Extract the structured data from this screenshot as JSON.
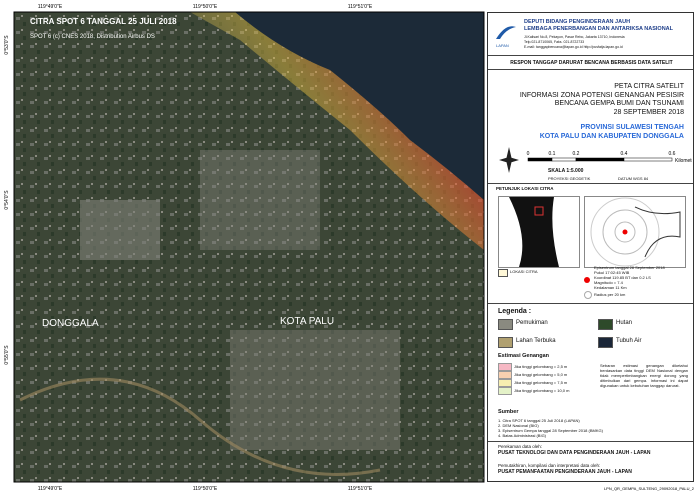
{
  "map": {
    "caption": "CITRA SPOT 6 TANGGAL 25 JULI 2018",
    "copyright": "SPOT 6 (c) CNES 2018, Distribution Airbus DS",
    "labels": [
      "DONGGALA",
      "KOTA PALU"
    ],
    "lon_labels": [
      "119°49'0\"E",
      "119°50'0\"E",
      "119°51'0\"E"
    ],
    "lat_labels": [
      "0°53'0\"S",
      "0°54'0\"S",
      "0°55'0\"S"
    ]
  },
  "header": {
    "agency_line1": "DEPUTI BIDANG PENGINDERAAN JAUH",
    "agency_line2": "LEMBAGA PENERBANGAN DAN ANTARIKSA NASIONAL",
    "logo_text": "LAPAN",
    "address": "Jl.Kalisari No.8, Pekayon, Pasar Rebo, Jakarta 13710, Indonesia",
    "contact": "Telp.021-8710065, Faks. 021-8722733",
    "email": "E-mail: tanggapbencana@lapan.go.id http://pusfatja.lapan.go.id",
    "program": "RESPON TANGGAP DARURAT BENCANA BERBASIS DATA SATELIT"
  },
  "title": {
    "lines": [
      "PETA CITRA SATELIT",
      "INFORMASI ZONA POTENSI GENANGAN PESISIR",
      "BENCANA GEMPA BUMI DAN TSUNAMI",
      "28 SEPTEMBER 2018"
    ],
    "region_lines": [
      "PROVINSI SULAWESI TENGAH",
      "KOTA PALU DAN KABUPATEN DONGGALA"
    ]
  },
  "scale": {
    "ticks": [
      "0",
      "0.1",
      "0.2",
      "0.4",
      "0.6"
    ],
    "unit": "Kilometer",
    "ratio": "SKALA  1:5.000",
    "projection": "PROYEKSI GEODETIK",
    "datum": "DATUM WGS 84"
  },
  "location": {
    "title": "PETUNJUK LOKASI CITRA",
    "box_label": "LOKASI CITRA",
    "epicenter": [
      "Episentrum tanggal 28 September 2018",
      "Pukul 17:02:45 WIB",
      "Koordinat 119.85 BT dan 0.2 LS",
      "Magnitudo = 7.4",
      "Kedalaman 11 Km"
    ],
    "radius": "Radius per 20 km"
  },
  "legend": {
    "title": "Legenda :",
    "items": [
      "Pemukiman",
      "Hutan",
      "Lahan Terbuka",
      "Tubuh Air"
    ]
  },
  "inundation": {
    "title": "Estimasi Genangan",
    "items": [
      "Jika tinggi gelombang = 2,5 m",
      "Jika tinggi gelombang = 5,0 m",
      "Jika tinggi gelombang = 7,5 m",
      "Jika tinggi gelombang = 10,0 m"
    ],
    "note": "Sebaran estimasi genangan diketahui berdasarkan data tinggi DEM Nasional dengan tidak mempertimbangkan energi dorong yang ditimbulkan dari gempa. Informasi ini dapat digunakan untuk kebutuhan tanggap darurat."
  },
  "sources": {
    "title": "Sumber",
    "items": [
      "1. Citra SPOT 6 tanggal 25 Juli 2018 (LAPAN)",
      "2. DEM Nasional (BIG)",
      "3. Episentrum Gempa tanggal 28 September 2018 (BMKG)",
      "4. Batas Administrasi (BIG)"
    ]
  },
  "credits": {
    "recorded_by": "Perekaman data oleh:",
    "recorder": "PUSAT TEKNOLOGI DAN DATA PENGINDERAAN JAUH - LAPAN",
    "updated_by": "Pemutakhiran, kompilasi dan interpretasi data oleh:",
    "updater": "PUSAT PEMANFAATAN PENGINDERAAN JAUH - LAPAN"
  },
  "footer": "LPN_QR_GEMPA_SULTENG_29092018_PALU_2"
}
